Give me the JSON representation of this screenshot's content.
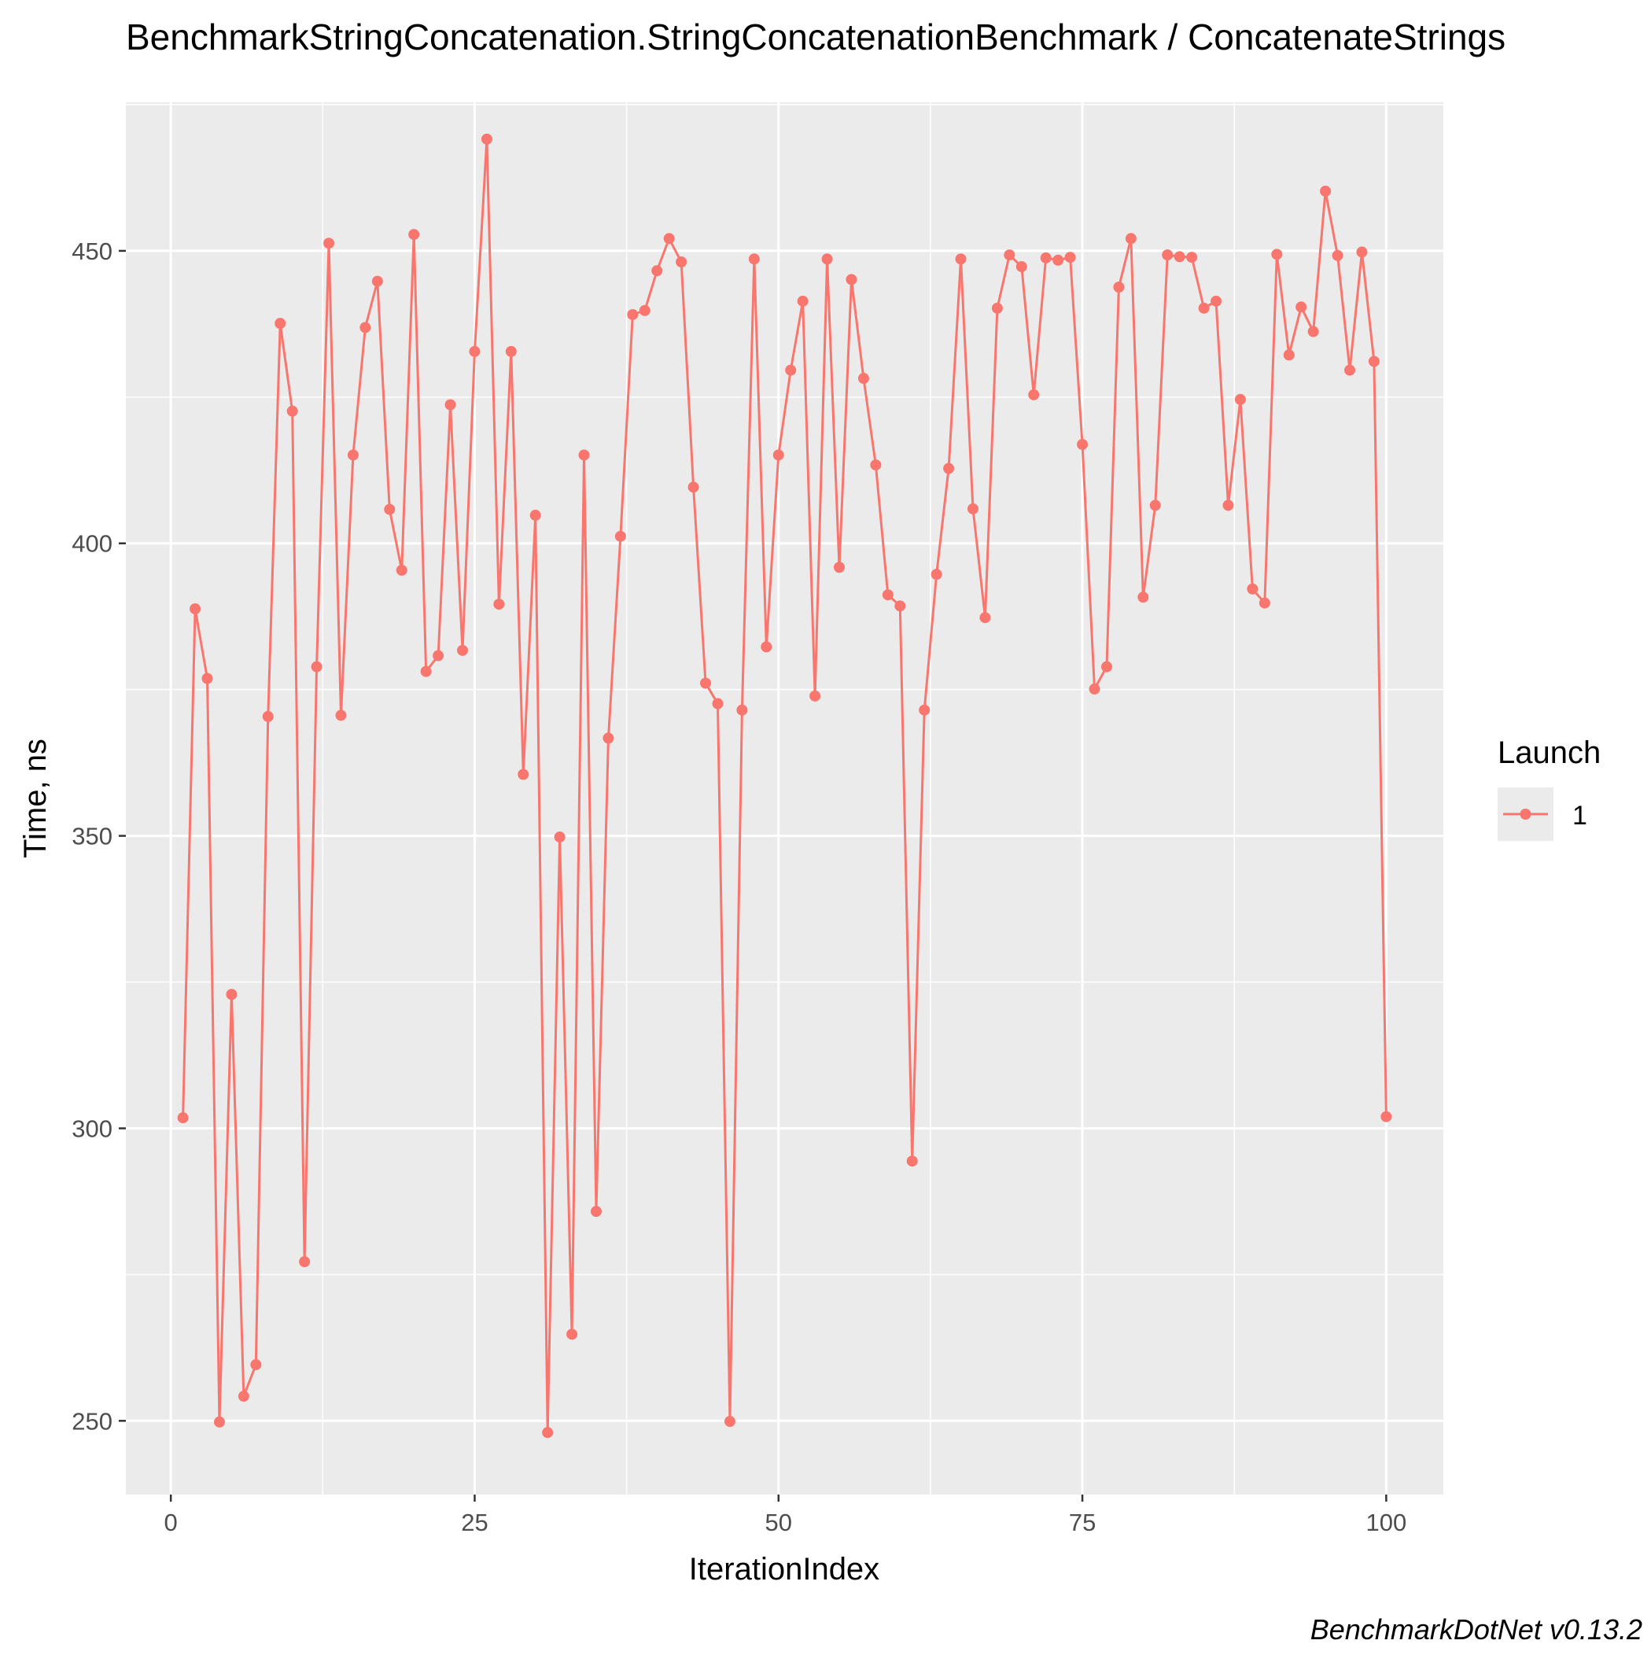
{
  "chart_data": {
    "type": "line",
    "title": "BenchmarkStringConcatenation.StringConcatenationBenchmark / ConcatenateStrings",
    "xlabel": "IterationIndex",
    "ylabel": "Time, ns",
    "caption": "BenchmarkDotNet v0.13.2",
    "xlim": [
      -3.7,
      104.7
    ],
    "ylim": [
      237.4,
      475.4
    ],
    "x_ticks": [
      0,
      25,
      50,
      75,
      100
    ],
    "x_tick_labels": [
      "0",
      "25",
      "50",
      "75",
      "100"
    ],
    "y_ticks": [
      250,
      300,
      350,
      400,
      450
    ],
    "y_tick_labels": [
      "250",
      "300",
      "350",
      "400",
      "450"
    ],
    "grid": true,
    "legend": {
      "title": "Launch",
      "position": "right",
      "entries": [
        "1"
      ]
    },
    "series": [
      {
        "name": "1",
        "color": "#F8766D",
        "x": [
          1,
          2,
          3,
          4,
          5,
          6,
          7,
          8,
          9,
          10,
          11,
          12,
          13,
          14,
          15,
          16,
          17,
          18,
          19,
          20,
          21,
          22,
          23,
          24,
          25,
          26,
          27,
          28,
          29,
          30,
          31,
          32,
          33,
          34,
          35,
          36,
          37,
          38,
          39,
          40,
          41,
          42,
          43,
          44,
          45,
          46,
          47,
          48,
          49,
          50,
          51,
          52,
          53,
          54,
          55,
          56,
          57,
          58,
          59,
          60,
          61,
          62,
          63,
          64,
          65,
          66,
          67,
          68,
          69,
          70,
          71,
          72,
          73,
          74,
          75,
          76,
          77,
          78,
          79,
          80,
          81,
          82,
          83,
          84,
          85,
          86,
          87,
          88,
          89,
          90,
          91,
          92,
          93,
          94,
          95,
          96,
          97,
          98,
          99,
          100
        ],
        "values": [
          301.8,
          388.8,
          376.9,
          249.8,
          322.9,
          254.2,
          259.6,
          370.4,
          437.6,
          422.6,
          277.2,
          378.9,
          451.3,
          370.6,
          415.1,
          436.9,
          444.8,
          405.8,
          395.4,
          452.8,
          378.1,
          380.8,
          423.7,
          381.7,
          432.8,
          469.1,
          389.6,
          432.8,
          360.5,
          404.8,
          248.0,
          349.8,
          264.8,
          415.1,
          285.8,
          366.7,
          401.2,
          439.1,
          439.8,
          446.6,
          452.1,
          448.1,
          409.6,
          376.1,
          372.6,
          249.9,
          371.5,
          448.6,
          382.3,
          415.1,
          429.6,
          441.4,
          373.9,
          448.6,
          395.9,
          445.1,
          428.2,
          413.4,
          391.2,
          389.3,
          294.4,
          371.5,
          394.7,
          412.8,
          448.6,
          405.9,
          387.3,
          440.2,
          449.3,
          447.3,
          425.4,
          448.8,
          448.4,
          448.9,
          416.9,
          375.1,
          378.9,
          443.8,
          452.1,
          390.8,
          406.5,
          449.3,
          449.0,
          448.9,
          440.2,
          441.4,
          406.5,
          424.6,
          392.2,
          389.8,
          449.4,
          432.2,
          440.4,
          436.2,
          460.2,
          449.2,
          429.6,
          449.8,
          431.1,
          302.0
        ]
      }
    ]
  }
}
